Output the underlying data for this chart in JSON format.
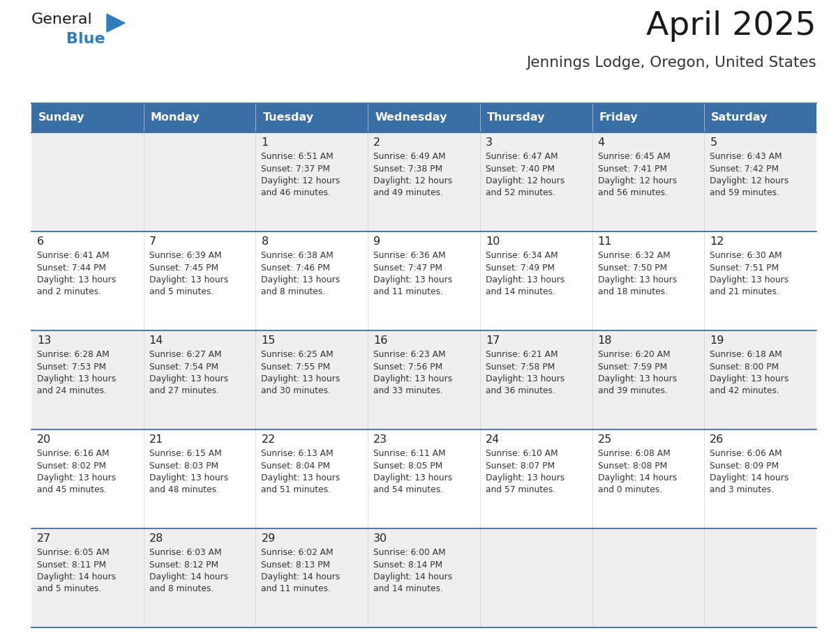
{
  "title": "April 2025",
  "subtitle": "Jennings Lodge, Oregon, United States",
  "header_bg_color": "#3A6EA5",
  "header_text_color": "#FFFFFF",
  "day_names": [
    "Sunday",
    "Monday",
    "Tuesday",
    "Wednesday",
    "Thursday",
    "Friday",
    "Saturday"
  ],
  "odd_row_bg": "#EFEFEF",
  "even_row_bg": "#FFFFFF",
  "cell_border_color": "#3A6EA5",
  "day_number_color": "#222222",
  "info_text_color": "#333333",
  "title_color": "#1a1a1a",
  "subtitle_color": "#333333",
  "logo_general_color": "#1a1a1a",
  "logo_blue_color": "#2E7EC1",
  "weeks": [
    [
      {
        "day": "",
        "info": ""
      },
      {
        "day": "",
        "info": ""
      },
      {
        "day": "1",
        "info": "Sunrise: 6:51 AM\nSunset: 7:37 PM\nDaylight: 12 hours\nand 46 minutes."
      },
      {
        "day": "2",
        "info": "Sunrise: 6:49 AM\nSunset: 7:38 PM\nDaylight: 12 hours\nand 49 minutes."
      },
      {
        "day": "3",
        "info": "Sunrise: 6:47 AM\nSunset: 7:40 PM\nDaylight: 12 hours\nand 52 minutes."
      },
      {
        "day": "4",
        "info": "Sunrise: 6:45 AM\nSunset: 7:41 PM\nDaylight: 12 hours\nand 56 minutes."
      },
      {
        "day": "5",
        "info": "Sunrise: 6:43 AM\nSunset: 7:42 PM\nDaylight: 12 hours\nand 59 minutes."
      }
    ],
    [
      {
        "day": "6",
        "info": "Sunrise: 6:41 AM\nSunset: 7:44 PM\nDaylight: 13 hours\nand 2 minutes."
      },
      {
        "day": "7",
        "info": "Sunrise: 6:39 AM\nSunset: 7:45 PM\nDaylight: 13 hours\nand 5 minutes."
      },
      {
        "day": "8",
        "info": "Sunrise: 6:38 AM\nSunset: 7:46 PM\nDaylight: 13 hours\nand 8 minutes."
      },
      {
        "day": "9",
        "info": "Sunrise: 6:36 AM\nSunset: 7:47 PM\nDaylight: 13 hours\nand 11 minutes."
      },
      {
        "day": "10",
        "info": "Sunrise: 6:34 AM\nSunset: 7:49 PM\nDaylight: 13 hours\nand 14 minutes."
      },
      {
        "day": "11",
        "info": "Sunrise: 6:32 AM\nSunset: 7:50 PM\nDaylight: 13 hours\nand 18 minutes."
      },
      {
        "day": "12",
        "info": "Sunrise: 6:30 AM\nSunset: 7:51 PM\nDaylight: 13 hours\nand 21 minutes."
      }
    ],
    [
      {
        "day": "13",
        "info": "Sunrise: 6:28 AM\nSunset: 7:53 PM\nDaylight: 13 hours\nand 24 minutes."
      },
      {
        "day": "14",
        "info": "Sunrise: 6:27 AM\nSunset: 7:54 PM\nDaylight: 13 hours\nand 27 minutes."
      },
      {
        "day": "15",
        "info": "Sunrise: 6:25 AM\nSunset: 7:55 PM\nDaylight: 13 hours\nand 30 minutes."
      },
      {
        "day": "16",
        "info": "Sunrise: 6:23 AM\nSunset: 7:56 PM\nDaylight: 13 hours\nand 33 minutes."
      },
      {
        "day": "17",
        "info": "Sunrise: 6:21 AM\nSunset: 7:58 PM\nDaylight: 13 hours\nand 36 minutes."
      },
      {
        "day": "18",
        "info": "Sunrise: 6:20 AM\nSunset: 7:59 PM\nDaylight: 13 hours\nand 39 minutes."
      },
      {
        "day": "19",
        "info": "Sunrise: 6:18 AM\nSunset: 8:00 PM\nDaylight: 13 hours\nand 42 minutes."
      }
    ],
    [
      {
        "day": "20",
        "info": "Sunrise: 6:16 AM\nSunset: 8:02 PM\nDaylight: 13 hours\nand 45 minutes."
      },
      {
        "day": "21",
        "info": "Sunrise: 6:15 AM\nSunset: 8:03 PM\nDaylight: 13 hours\nand 48 minutes."
      },
      {
        "day": "22",
        "info": "Sunrise: 6:13 AM\nSunset: 8:04 PM\nDaylight: 13 hours\nand 51 minutes."
      },
      {
        "day": "23",
        "info": "Sunrise: 6:11 AM\nSunset: 8:05 PM\nDaylight: 13 hours\nand 54 minutes."
      },
      {
        "day": "24",
        "info": "Sunrise: 6:10 AM\nSunset: 8:07 PM\nDaylight: 13 hours\nand 57 minutes."
      },
      {
        "day": "25",
        "info": "Sunrise: 6:08 AM\nSunset: 8:08 PM\nDaylight: 14 hours\nand 0 minutes."
      },
      {
        "day": "26",
        "info": "Sunrise: 6:06 AM\nSunset: 8:09 PM\nDaylight: 14 hours\nand 3 minutes."
      }
    ],
    [
      {
        "day": "27",
        "info": "Sunrise: 6:05 AM\nSunset: 8:11 PM\nDaylight: 14 hours\nand 5 minutes."
      },
      {
        "day": "28",
        "info": "Sunrise: 6:03 AM\nSunset: 8:12 PM\nDaylight: 14 hours\nand 8 minutes."
      },
      {
        "day": "29",
        "info": "Sunrise: 6:02 AM\nSunset: 8:13 PM\nDaylight: 14 hours\nand 11 minutes."
      },
      {
        "day": "30",
        "info": "Sunrise: 6:00 AM\nSunset: 8:14 PM\nDaylight: 14 hours\nand 14 minutes."
      },
      {
        "day": "",
        "info": ""
      },
      {
        "day": "",
        "info": ""
      },
      {
        "day": "",
        "info": ""
      }
    ]
  ]
}
